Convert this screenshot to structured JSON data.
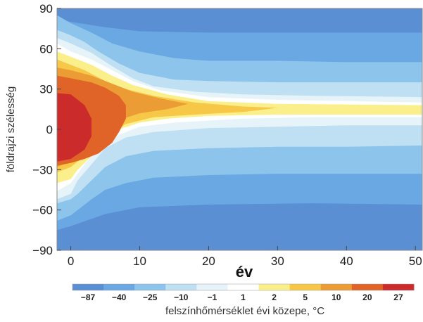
{
  "chart_data": {
    "type": "heatmap",
    "xlabel": "év",
    "ylabel": "földrajzi szélesség",
    "xlim": [
      -2,
      51
    ],
    "ylim": [
      -90,
      90
    ],
    "xticks": [
      0,
      10,
      20,
      30,
      40,
      50
    ],
    "yticks": [
      90,
      60,
      30,
      0,
      -30,
      -60,
      -90
    ],
    "colorbar": {
      "label": "felszínhőmérséklet évi közepe, °C",
      "tick_labels": [
        "-87",
        "-40",
        "-25",
        "-10",
        "-1",
        "1",
        "2",
        "5",
        "10",
        "20",
        "27"
      ],
      "band_colors": [
        "#5b8fd4",
        "#6aa8e4",
        "#8cc4ec",
        "#bfe0f2",
        "#e6f3f9",
        "#ffffff",
        "#fbef8c",
        "#f7c848",
        "#eb9c34",
        "#e06428",
        "#cc2b2b"
      ]
    },
    "contour_bands": [
      {
        "level": 0,
        "color": "#5b8fd4",
        "boundary": []
      },
      {
        "level": 1,
        "color": "#6aa8e4",
        "boundary": [
          [
            -2,
            82
          ],
          [
            0,
            80
          ],
          [
            5,
            76
          ],
          [
            10,
            73
          ],
          [
            20,
            72
          ],
          [
            35,
            72
          ],
          [
            51,
            72
          ],
          [
            51,
            -56
          ],
          [
            35,
            -55
          ],
          [
            20,
            -56
          ],
          [
            10,
            -58
          ],
          [
            5,
            -63
          ],
          [
            0,
            -72
          ],
          [
            -2,
            -75
          ]
        ]
      },
      {
        "level": 2,
        "color": "#8cc4ec",
        "boundary": [
          [
            -2,
            85
          ],
          [
            0,
            79
          ],
          [
            3,
            72
          ],
          [
            6,
            64
          ],
          [
            10,
            58
          ],
          [
            15,
            53
          ],
          [
            20,
            51
          ],
          [
            30,
            51
          ],
          [
            40,
            50
          ],
          [
            51,
            50
          ],
          [
            51,
            -33
          ],
          [
            40,
            -33
          ],
          [
            30,
            -33
          ],
          [
            20,
            -34
          ],
          [
            12,
            -36
          ],
          [
            8,
            -40
          ],
          [
            5,
            -45
          ],
          [
            3,
            -52
          ],
          [
            1,
            -60
          ],
          [
            0,
            -64
          ],
          [
            -2,
            -68
          ]
        ]
      },
      {
        "level": 3,
        "color": "#bfe0f2",
        "boundary": [
          [
            -2,
            74
          ],
          [
            0,
            70
          ],
          [
            2,
            65
          ],
          [
            4,
            58
          ],
          [
            7,
            49
          ],
          [
            10,
            42
          ],
          [
            15,
            37
          ],
          [
            20,
            36
          ],
          [
            30,
            35
          ],
          [
            40,
            35
          ],
          [
            51,
            35
          ],
          [
            51,
            -12
          ],
          [
            40,
            -13
          ],
          [
            30,
            -13
          ],
          [
            20,
            -14
          ],
          [
            12,
            -16
          ],
          [
            8,
            -20
          ],
          [
            5,
            -28
          ],
          [
            3,
            -38
          ],
          [
            1,
            -48
          ],
          [
            0,
            -52
          ],
          [
            -2,
            -55
          ]
        ]
      },
      {
        "level": 4,
        "color": "#e6f3f9",
        "boundary": [
          [
            -2,
            68
          ],
          [
            0,
            64
          ],
          [
            3,
            57
          ],
          [
            6,
            47
          ],
          [
            9,
            38
          ],
          [
            12,
            32
          ],
          [
            18,
            28
          ],
          [
            25,
            26
          ],
          [
            35,
            25
          ],
          [
            51,
            24
          ],
          [
            51,
            3
          ],
          [
            40,
            3
          ],
          [
            30,
            2
          ],
          [
            20,
            1
          ],
          [
            12,
            -2
          ],
          [
            8,
            -6
          ],
          [
            5,
            -14
          ],
          [
            3,
            -26
          ],
          [
            1,
            -38
          ],
          [
            0,
            -48
          ],
          [
            -2,
            -52
          ]
        ]
      },
      {
        "level": 5,
        "color": "#ffffff",
        "boundary": [
          [
            -2,
            64
          ],
          [
            0,
            58
          ],
          [
            3,
            52
          ],
          [
            6,
            44
          ],
          [
            9,
            36
          ],
          [
            13,
            29
          ],
          [
            20,
            24
          ],
          [
            30,
            22
          ],
          [
            51,
            20
          ],
          [
            51,
            9
          ],
          [
            35,
            9
          ],
          [
            25,
            8
          ],
          [
            15,
            5
          ],
          [
            10,
            2
          ],
          [
            7,
            -4
          ],
          [
            4,
            -14
          ],
          [
            2,
            -26
          ],
          [
            0,
            -40
          ],
          [
            -2,
            -46
          ]
        ]
      },
      {
        "level": 6,
        "color": "#fbef8c",
        "boundary": [
          [
            -2,
            58
          ],
          [
            0,
            54
          ],
          [
            3,
            48
          ],
          [
            6,
            40
          ],
          [
            9,
            33
          ],
          [
            14,
            26
          ],
          [
            20,
            21
          ],
          [
            30,
            19
          ],
          [
            51,
            18
          ],
          [
            51,
            11
          ],
          [
            30,
            11
          ],
          [
            20,
            10
          ],
          [
            14,
            8
          ],
          [
            10,
            5
          ],
          [
            7,
            0
          ],
          [
            5,
            -8
          ],
          [
            3,
            -20
          ],
          [
            1,
            -30
          ],
          [
            0,
            -37
          ],
          [
            -2,
            -40
          ]
        ]
      },
      {
        "level": 7,
        "color": "#f7c848",
        "boundary": [
          [
            -2,
            52
          ],
          [
            0,
            48
          ],
          [
            2,
            44
          ],
          [
            5,
            36
          ],
          [
            8,
            30
          ],
          [
            12,
            25
          ],
          [
            18,
            20
          ],
          [
            25,
            17
          ],
          [
            30,
            16
          ],
          [
            25,
            13
          ],
          [
            18,
            11
          ],
          [
            12,
            9
          ],
          [
            8,
            4
          ],
          [
            5,
            -6
          ],
          [
            3,
            -16
          ],
          [
            1,
            -24
          ],
          [
            0,
            -28
          ],
          [
            -2,
            -32
          ]
        ]
      },
      {
        "level": 8,
        "color": "#eb9c34",
        "boundary": [
          [
            -2,
            46
          ],
          [
            0,
            44
          ],
          [
            3,
            40
          ],
          [
            6,
            34
          ],
          [
            9,
            28
          ],
          [
            13,
            23
          ],
          [
            17,
            19
          ],
          [
            14,
            15
          ],
          [
            10,
            12
          ],
          [
            7,
            7
          ],
          [
            5,
            -2
          ],
          [
            3,
            -12
          ],
          [
            1,
            -20
          ],
          [
            0,
            -24
          ],
          [
            -2,
            -28
          ]
        ]
      },
      {
        "level": 9,
        "color": "#e06428",
        "boundary": [
          [
            -2,
            40
          ],
          [
            0,
            38
          ],
          [
            3,
            35
          ],
          [
            5,
            31
          ],
          [
            7,
            25
          ],
          [
            8,
            18
          ],
          [
            8,
            8
          ],
          [
            7,
            -2
          ],
          [
            6,
            -10
          ],
          [
            4,
            -18
          ],
          [
            2,
            -22
          ],
          [
            0,
            -25
          ],
          [
            -2,
            -27
          ]
        ]
      },
      {
        "level": 10,
        "color": "#cc2b2b",
        "boundary": [
          [
            -2,
            27
          ],
          [
            0,
            26
          ],
          [
            2,
            18
          ],
          [
            3,
            8
          ],
          [
            3,
            -5
          ],
          [
            2,
            -15
          ],
          [
            0,
            -22
          ],
          [
            -2,
            -24
          ]
        ]
      }
    ]
  }
}
